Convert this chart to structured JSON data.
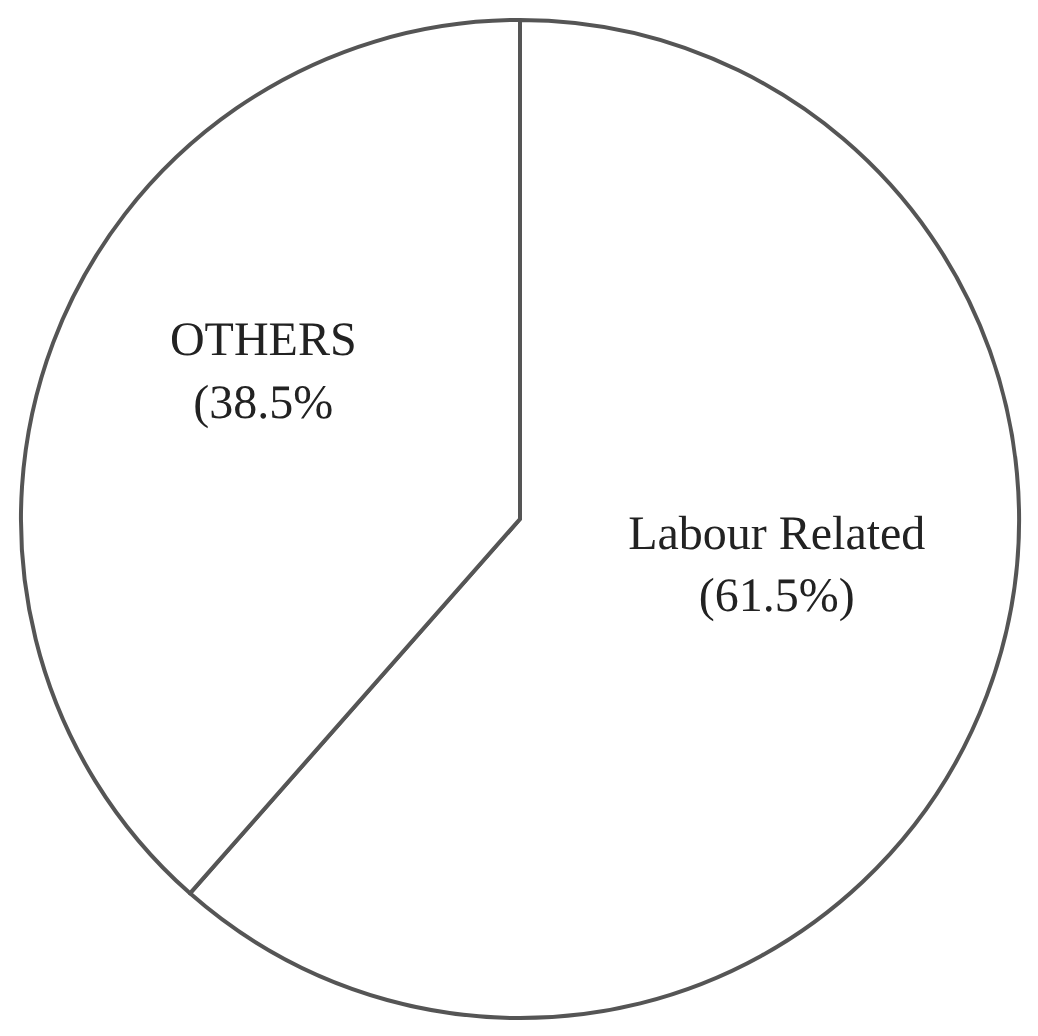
{
  "chart_data": {
    "type": "pie",
    "categories": [
      "Labour Related",
      "OTHERS"
    ],
    "values": [
      61.5,
      38.5
    ],
    "colors": [
      "#ffffff",
      "#ffffff"
    ],
    "value_labels": [
      "(61.5%)",
      "(38.5%"
    ]
  }
}
